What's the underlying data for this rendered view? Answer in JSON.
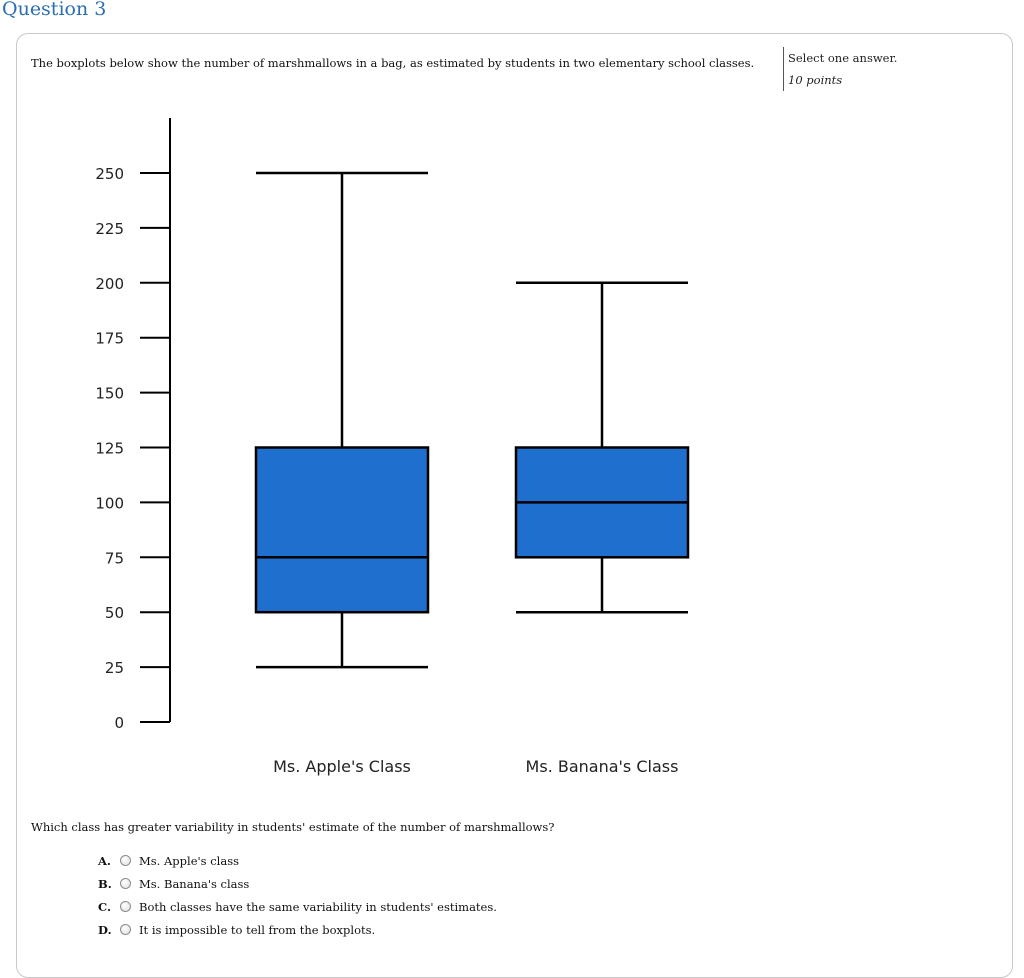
{
  "question": {
    "heading": "Question 3",
    "prompt": "The boxplots below show the number of marshmallows in a bag, as estimated by students in two elementary school classes.",
    "instruction": "Select one answer.",
    "points": "10 points",
    "text": "Which class has greater variability in students' estimate of the number of marshmallows?"
  },
  "choices": [
    {
      "letter": "A.",
      "label": "Ms. Apple's class"
    },
    {
      "letter": "B.",
      "label": "Ms. Banana's class"
    },
    {
      "letter": "C.",
      "label": "Both classes have the same variability in students' estimates."
    },
    {
      "letter": "D.",
      "label": "It is impossible to tell from the boxplots."
    }
  ],
  "colors": {
    "box_fill": "#1e6fce",
    "stroke": "#000000",
    "heading": "#2a6db0"
  },
  "chart_data": {
    "type": "boxplot",
    "title": "",
    "xlabel": "",
    "ylabel": "",
    "yticks": [
      0,
      25,
      50,
      75,
      100,
      125,
      150,
      175,
      200,
      225,
      250
    ],
    "ylim": [
      0,
      250
    ],
    "categories": [
      "Ms. Apple's Class",
      "Ms. Banana's Class"
    ],
    "series": [
      {
        "min": 25,
        "q1": 50,
        "median": 75,
        "q3": 125,
        "max": 250
      },
      {
        "min": 50,
        "q1": 75,
        "median": 100,
        "q3": 125,
        "max": 200
      }
    ],
    "grid": false
  }
}
